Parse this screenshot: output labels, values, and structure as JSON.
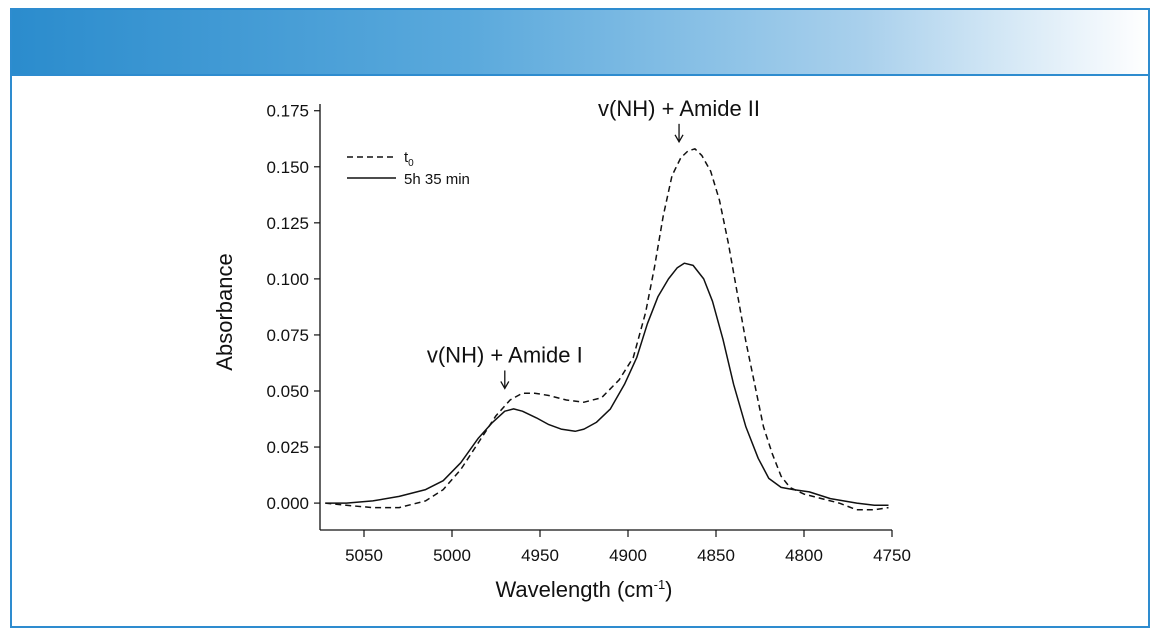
{
  "colors": {
    "banner_start": "#2b8ccd",
    "frame": "#2e8ccf",
    "line": "#111111"
  },
  "chart_data": {
    "type": "line",
    "xlabel": "Wavelength (cm",
    "xlabel_sup": "-1",
    "xlabel_end": ")",
    "ylabel": "Absorbance",
    "xlim": [
      5075,
      4750
    ],
    "x_reversed": true,
    "ylim": [
      -0.012,
      0.178
    ],
    "xticks": [
      5050,
      5000,
      4950,
      4900,
      4850,
      4800,
      4750
    ],
    "xtick_labels": [
      "5050",
      "5000",
      "4950",
      "4900",
      "4850",
      "4800",
      "4750"
    ],
    "yticks": [
      0.0,
      0.025,
      0.05,
      0.075,
      0.1,
      0.125,
      0.15,
      0.175
    ],
    "ytick_labels": [
      "0.000",
      "0.025",
      "0.050",
      "0.075",
      "0.100",
      "0.125",
      "0.150",
      "0.175"
    ],
    "grid": false,
    "legend_position": "top-left",
    "series": [
      {
        "name": "t",
        "name_sub": "0",
        "style": "dashed",
        "points": [
          [
            5072,
            0.0
          ],
          [
            5060,
            -0.001
          ],
          [
            5045,
            -0.002
          ],
          [
            5030,
            -0.002
          ],
          [
            5015,
            0.001
          ],
          [
            5005,
            0.006
          ],
          [
            4995,
            0.015
          ],
          [
            4985,
            0.027
          ],
          [
            4975,
            0.039
          ],
          [
            4967,
            0.046
          ],
          [
            4960,
            0.049
          ],
          [
            4953,
            0.049
          ],
          [
            4945,
            0.048
          ],
          [
            4935,
            0.046
          ],
          [
            4925,
            0.045
          ],
          [
            4915,
            0.047
          ],
          [
            4905,
            0.055
          ],
          [
            4897,
            0.065
          ],
          [
            4890,
            0.085
          ],
          [
            4885,
            0.105
          ],
          [
            4880,
            0.128
          ],
          [
            4875,
            0.146
          ],
          [
            4870,
            0.154
          ],
          [
            4866,
            0.157
          ],
          [
            4862,
            0.158
          ],
          [
            4858,
            0.155
          ],
          [
            4853,
            0.148
          ],
          [
            4848,
            0.135
          ],
          [
            4843,
            0.116
          ],
          [
            4838,
            0.094
          ],
          [
            4833,
            0.072
          ],
          [
            4828,
            0.053
          ],
          [
            4823,
            0.034
          ],
          [
            4818,
            0.022
          ],
          [
            4813,
            0.012
          ],
          [
            4808,
            0.007
          ],
          [
            4800,
            0.004
          ],
          [
            4790,
            0.002
          ],
          [
            4780,
            0.0
          ],
          [
            4770,
            -0.003
          ],
          [
            4760,
            -0.003
          ],
          [
            4752,
            -0.002
          ]
        ]
      },
      {
        "name": "5h 35 min",
        "style": "solid",
        "points": [
          [
            5072,
            0.0
          ],
          [
            5060,
            0.0
          ],
          [
            5045,
            0.001
          ],
          [
            5030,
            0.003
          ],
          [
            5015,
            0.006
          ],
          [
            5005,
            0.01
          ],
          [
            4995,
            0.018
          ],
          [
            4985,
            0.029
          ],
          [
            4977,
            0.036
          ],
          [
            4970,
            0.041
          ],
          [
            4965,
            0.042
          ],
          [
            4960,
            0.041
          ],
          [
            4952,
            0.038
          ],
          [
            4945,
            0.035
          ],
          [
            4938,
            0.033
          ],
          [
            4930,
            0.032
          ],
          [
            4925,
            0.033
          ],
          [
            4918,
            0.036
          ],
          [
            4910,
            0.042
          ],
          [
            4902,
            0.053
          ],
          [
            4895,
            0.065
          ],
          [
            4889,
            0.08
          ],
          [
            4883,
            0.092
          ],
          [
            4877,
            0.1
          ],
          [
            4872,
            0.105
          ],
          [
            4868,
            0.107
          ],
          [
            4863,
            0.106
          ],
          [
            4857,
            0.1
          ],
          [
            4852,
            0.09
          ],
          [
            4846,
            0.073
          ],
          [
            4840,
            0.053
          ],
          [
            4833,
            0.034
          ],
          [
            4826,
            0.02
          ],
          [
            4820,
            0.011
          ],
          [
            4813,
            0.007
          ],
          [
            4806,
            0.006
          ],
          [
            4797,
            0.005
          ],
          [
            4785,
            0.002
          ],
          [
            4770,
            0.0
          ],
          [
            4760,
            -0.001
          ],
          [
            4752,
            -0.001
          ]
        ]
      }
    ],
    "annotations": [
      {
        "text": "v(NH) + Amide I",
        "x": 4970,
        "y": 0.048
      },
      {
        "text": "v(NH) + Amide II",
        "x": 4871,
        "y": 0.158
      }
    ]
  }
}
